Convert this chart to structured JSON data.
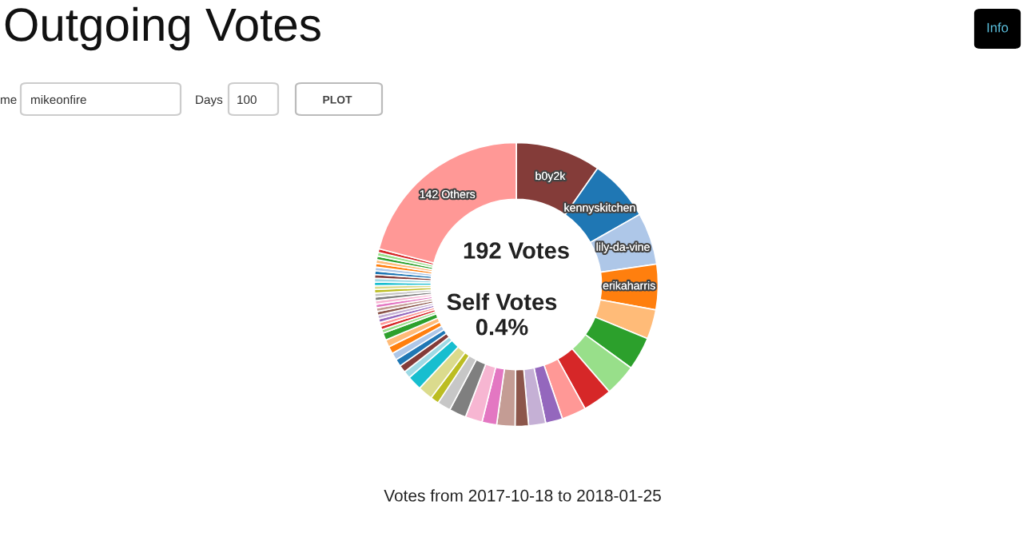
{
  "chart_data": {
    "type": "donut",
    "title": "Outgoing Votes",
    "categories": [
      "b0y2k",
      "kennyskitchen",
      "lily-da-vine",
      "erikaharris",
      null,
      null,
      null,
      null,
      null,
      null,
      null,
      null,
      null,
      null,
      null,
      null,
      null,
      null,
      null,
      null,
      null,
      null,
      null,
      null,
      null,
      null,
      null,
      null,
      null,
      null,
      null,
      null,
      null,
      null,
      null,
      null,
      null,
      null,
      null,
      null,
      null,
      null,
      null,
      null,
      null,
      null,
      null,
      null,
      null,
      null,
      "142 Others"
    ],
    "values": [
      9.72,
      7.06,
      5.92,
      5.17,
      3.36,
      3.78,
      3.61,
      3.33,
      2.78,
      1.94,
      1.94,
      1.53,
      2.08,
      1.67,
      1.94,
      1.94,
      1.53,
      0.97,
      1.67,
      1.67,
      0.83,
      0.83,
      0.83,
      0.83,
      0.83,
      0.83,
      0.83,
      0.42,
      0.42,
      0.42,
      0.42,
      0.42,
      0.42,
      0.42,
      0.4,
      0.42,
      0.42,
      0.42,
      0.42,
      0.42,
      0.42,
      0.42,
      0.42,
      0.42,
      0.42,
      0.42,
      0.42,
      0.42,
      0.42,
      0.42,
      20.94
    ],
    "colors": [
      "#843c39",
      "#1f77b4",
      "#aec7e8",
      "#ff7f0e",
      "#ffbb78",
      "#2ca02c",
      "#98df8a",
      "#d62728",
      "#ff9896",
      "#9467bd",
      "#c5b0d5",
      "#8c564b",
      "#c49c94",
      "#e377c2",
      "#f7b6d2",
      "#7f7f7f",
      "#c7c7c7",
      "#bcbd22",
      "#dbdb8d",
      "#17becf",
      "#9edae5",
      "#843c39",
      "#1f77b4",
      "#aec7e8",
      "#ff7f0e",
      "#ffbb78",
      "#2ca02c",
      "#98df8a",
      "#d62728",
      "#ff9896",
      "#9467bd",
      "#c5b0d5",
      "#8c564b",
      "#c49c94",
      "#e377c2",
      "#f7b6d2",
      "#7f7f7f",
      "#c7c7c7",
      "#bcbd22",
      "#dbdb8d",
      "#17becf",
      "#9edae5",
      "#843c39",
      "#1f77b4",
      "#aec7e8",
      "#ff7f0e",
      "#ffbb78",
      "#2ca02c",
      "#98df8a",
      "#d62728",
      "#ff9896"
    ],
    "annotations": [
      "192 Votes",
      "Self Votes\n0.4%",
      "Votes from 2017-10-18 to 2018-01-25",
      "me",
      "mikeonfire",
      "Days",
      "100",
      "PLOT",
      "Info"
    ]
  }
}
